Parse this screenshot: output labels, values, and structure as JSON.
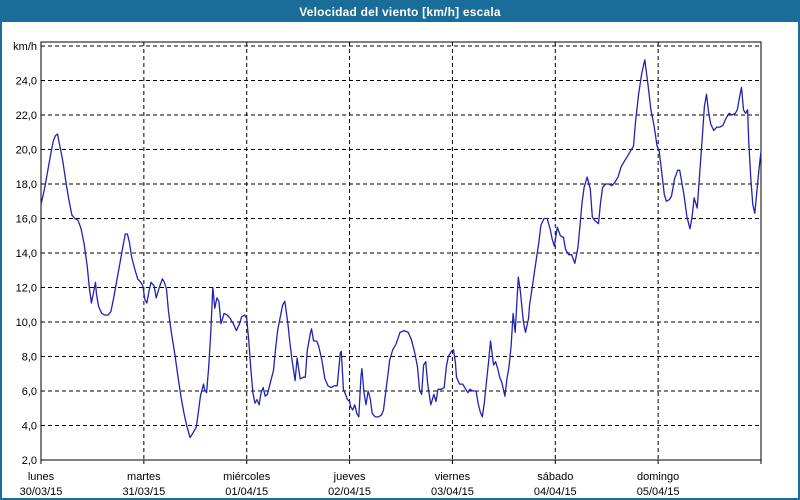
{
  "window": {
    "title": "Velocidad del viento [km/h] escala"
  },
  "colors": {
    "frame": "#1a6d99",
    "titlebar_bg": "#1a6d99",
    "titlebar_text": "#ffffff",
    "plot_bg": "#ffffff",
    "grid": "#000000",
    "axis_text": "#000000",
    "line": "#2222b2"
  },
  "chart_data": {
    "type": "line",
    "title": "Velocidad del viento [km/h] escala",
    "ylabel": "km/h",
    "ylim": [
      2,
      26
    ],
    "y_tick_step": 2,
    "y_tick_labels": [
      "2,0",
      "4,0",
      "6,0",
      "8,0",
      "10,0",
      "12,0",
      "14,0",
      "16,0",
      "18,0",
      "20,0",
      "22,0",
      "24,0"
    ],
    "y_top_label": "km/h",
    "grid": "dashed",
    "legend_position": "none",
    "x_axis_days": [
      {
        "name": "lunes",
        "date": "30/03/15"
      },
      {
        "name": "martes",
        "date": "31/03/15"
      },
      {
        "name": "miércoles",
        "date": "01/04/15"
      },
      {
        "name": "jueves",
        "date": "02/04/15"
      },
      {
        "name": "viernes",
        "date": "03/04/15"
      },
      {
        "name": "sábado",
        "date": "04/04/15"
      },
      {
        "name": "domingo",
        "date": "05/04/15"
      }
    ],
    "x_unit": "days_from_start",
    "x_range": [
      0,
      7
    ],
    "series": [
      {
        "name": "Velocidad del viento",
        "unit": "km/h",
        "color": "#2222b2",
        "points": [
          [
            0.0,
            16.8
          ],
          [
            0.04,
            17.9
          ],
          [
            0.09,
            19.6
          ],
          [
            0.12,
            20.5
          ],
          [
            0.14,
            20.8
          ],
          [
            0.16,
            20.9
          ],
          [
            0.18,
            20.3
          ],
          [
            0.21,
            19.4
          ],
          [
            0.24,
            18.2
          ],
          [
            0.27,
            17.1
          ],
          [
            0.3,
            16.2
          ],
          [
            0.33,
            16.0
          ],
          [
            0.36,
            15.9
          ],
          [
            0.39,
            15.4
          ],
          [
            0.42,
            14.5
          ],
          [
            0.45,
            13.2
          ],
          [
            0.47,
            12.0
          ],
          [
            0.49,
            11.1
          ],
          [
            0.51,
            11.7
          ],
          [
            0.53,
            12.3
          ],
          [
            0.54,
            11.6
          ],
          [
            0.56,
            10.9
          ],
          [
            0.59,
            10.5
          ],
          [
            0.62,
            10.4
          ],
          [
            0.65,
            10.4
          ],
          [
            0.68,
            10.6
          ],
          [
            0.71,
            11.5
          ],
          [
            0.74,
            12.5
          ],
          [
            0.77,
            13.5
          ],
          [
            0.8,
            14.5
          ],
          [
            0.82,
            15.1
          ],
          [
            0.84,
            15.1
          ],
          [
            0.86,
            14.6
          ],
          [
            0.88,
            13.8
          ],
          [
            0.91,
            13.1
          ],
          [
            0.94,
            12.5
          ],
          [
            0.97,
            12.3
          ],
          [
            0.99,
            12.1
          ],
          [
            1.01,
            11.3
          ],
          [
            1.03,
            11.1
          ],
          [
            1.05,
            11.8
          ],
          [
            1.07,
            12.3
          ],
          [
            1.1,
            12.1
          ],
          [
            1.12,
            11.4
          ],
          [
            1.15,
            12.0
          ],
          [
            1.18,
            12.5
          ],
          [
            1.2,
            12.3
          ],
          [
            1.22,
            11.9
          ],
          [
            1.24,
            10.6
          ],
          [
            1.27,
            9.3
          ],
          [
            1.3,
            8.2
          ],
          [
            1.33,
            6.9
          ],
          [
            1.36,
            5.7
          ],
          [
            1.39,
            4.7
          ],
          [
            1.42,
            3.9
          ],
          [
            1.45,
            3.3
          ],
          [
            1.48,
            3.6
          ],
          [
            1.51,
            3.9
          ],
          [
            1.53,
            4.8
          ],
          [
            1.55,
            5.7
          ],
          [
            1.58,
            6.4
          ],
          [
            1.59,
            6.1
          ],
          [
            1.61,
            5.9
          ],
          [
            1.63,
            7.4
          ],
          [
            1.65,
            9.3
          ],
          [
            1.67,
            12.0
          ],
          [
            1.69,
            10.8
          ],
          [
            1.71,
            11.4
          ],
          [
            1.73,
            11.2
          ],
          [
            1.75,
            9.9
          ],
          [
            1.78,
            10.5
          ],
          [
            1.81,
            10.4
          ],
          [
            1.84,
            10.2
          ],
          [
            1.87,
            9.9
          ],
          [
            1.9,
            9.5
          ],
          [
            1.93,
            9.9
          ],
          [
            1.95,
            10.3
          ],
          [
            1.98,
            10.4
          ],
          [
            2.0,
            10.2
          ],
          [
            2.02,
            8.9
          ],
          [
            2.04,
            7.3
          ],
          [
            2.06,
            5.9
          ],
          [
            2.08,
            5.3
          ],
          [
            2.1,
            5.5
          ],
          [
            2.12,
            5.2
          ],
          [
            2.14,
            5.9
          ],
          [
            2.16,
            6.2
          ],
          [
            2.18,
            5.7
          ],
          [
            2.2,
            5.8
          ],
          [
            2.23,
            6.5
          ],
          [
            2.26,
            7.2
          ],
          [
            2.28,
            8.4
          ],
          [
            2.3,
            9.5
          ],
          [
            2.32,
            10.1
          ],
          [
            2.35,
            11.0
          ],
          [
            2.37,
            11.2
          ],
          [
            2.4,
            9.9
          ],
          [
            2.42,
            8.8
          ],
          [
            2.44,
            7.8
          ],
          [
            2.47,
            6.6
          ],
          [
            2.49,
            7.9
          ],
          [
            2.52,
            6.7
          ],
          [
            2.55,
            6.8
          ],
          [
            2.57,
            6.8
          ],
          [
            2.59,
            8.4
          ],
          [
            2.62,
            9.4
          ],
          [
            2.63,
            9.6
          ],
          [
            2.65,
            8.9
          ],
          [
            2.68,
            8.9
          ],
          [
            2.7,
            8.6
          ],
          [
            2.73,
            7.8
          ],
          [
            2.76,
            6.7
          ],
          [
            2.79,
            6.3
          ],
          [
            2.82,
            6.2
          ],
          [
            2.85,
            6.3
          ],
          [
            2.88,
            6.3
          ],
          [
            2.91,
            8.2
          ],
          [
            2.92,
            8.3
          ],
          [
            2.94,
            6.1
          ],
          [
            2.96,
            5.8
          ],
          [
            2.98,
            5.5
          ],
          [
            3.0,
            5.4
          ],
          [
            3.01,
            5.1
          ],
          [
            3.03,
            4.9
          ],
          [
            3.05,
            5.2
          ],
          [
            3.07,
            4.7
          ],
          [
            3.09,
            4.5
          ],
          [
            3.11,
            6.8
          ],
          [
            3.12,
            7.3
          ],
          [
            3.14,
            5.9
          ],
          [
            3.16,
            5.2
          ],
          [
            3.18,
            6.0
          ],
          [
            3.2,
            5.6
          ],
          [
            3.22,
            4.7
          ],
          [
            3.25,
            4.5
          ],
          [
            3.28,
            4.5
          ],
          [
            3.31,
            4.6
          ],
          [
            3.33,
            4.9
          ],
          [
            3.35,
            5.9
          ],
          [
            3.37,
            6.8
          ],
          [
            3.39,
            7.8
          ],
          [
            3.42,
            8.4
          ],
          [
            3.45,
            8.7
          ],
          [
            3.49,
            9.4
          ],
          [
            3.53,
            9.5
          ],
          [
            3.57,
            9.4
          ],
          [
            3.6,
            9.0
          ],
          [
            3.63,
            8.3
          ],
          [
            3.66,
            7.4
          ],
          [
            3.68,
            6.1
          ],
          [
            3.7,
            5.8
          ],
          [
            3.72,
            7.5
          ],
          [
            3.74,
            7.7
          ],
          [
            3.76,
            6.4
          ],
          [
            3.79,
            5.2
          ],
          [
            3.82,
            5.8
          ],
          [
            3.84,
            5.4
          ],
          [
            3.86,
            6.1
          ],
          [
            3.89,
            6.1
          ],
          [
            3.92,
            6.2
          ],
          [
            3.94,
            7.4
          ],
          [
            3.96,
            8.0
          ],
          [
            3.99,
            8.3
          ],
          [
            4.01,
            8.4
          ],
          [
            4.03,
            7.6
          ],
          [
            4.04,
            6.8
          ],
          [
            4.07,
            6.4
          ],
          [
            4.1,
            6.4
          ],
          [
            4.13,
            6.1
          ],
          [
            4.15,
            5.9
          ],
          [
            4.17,
            6.1
          ],
          [
            4.2,
            6.0
          ],
          [
            4.23,
            6.0
          ],
          [
            4.25,
            5.3
          ],
          [
            4.27,
            4.8
          ],
          [
            4.29,
            4.5
          ],
          [
            4.31,
            5.3
          ],
          [
            4.33,
            6.5
          ],
          [
            4.35,
            7.6
          ],
          [
            4.37,
            8.9
          ],
          [
            4.39,
            8.0
          ],
          [
            4.4,
            7.5
          ],
          [
            4.42,
            7.7
          ],
          [
            4.44,
            7.3
          ],
          [
            4.46,
            6.8
          ],
          [
            4.48,
            6.5
          ],
          [
            4.51,
            5.7
          ],
          [
            4.53,
            6.7
          ],
          [
            4.55,
            7.4
          ],
          [
            4.57,
            8.6
          ],
          [
            4.59,
            10.5
          ],
          [
            4.61,
            9.4
          ],
          [
            4.64,
            12.6
          ],
          [
            4.66,
            11.8
          ],
          [
            4.69,
            10.0
          ],
          [
            4.71,
            9.4
          ],
          [
            4.74,
            10.2
          ],
          [
            4.75,
            11.0
          ],
          [
            4.78,
            12.2
          ],
          [
            4.81,
            13.4
          ],
          [
            4.84,
            14.6
          ],
          [
            4.86,
            15.6
          ],
          [
            4.89,
            16.0
          ],
          [
            4.92,
            16.0
          ],
          [
            4.95,
            15.4
          ],
          [
            4.97,
            14.8
          ],
          [
            4.99,
            14.4
          ],
          [
            5.02,
            15.5
          ],
          [
            5.05,
            15.0
          ],
          [
            5.08,
            14.9
          ],
          [
            5.1,
            14.2
          ],
          [
            5.13,
            13.9
          ],
          [
            5.16,
            13.9
          ],
          [
            5.19,
            13.4
          ],
          [
            5.22,
            14.3
          ],
          [
            5.24,
            15.6
          ],
          [
            5.26,
            16.9
          ],
          [
            5.28,
            17.8
          ],
          [
            5.31,
            18.4
          ],
          [
            5.34,
            17.7
          ],
          [
            5.36,
            16.1
          ],
          [
            5.38,
            15.9
          ],
          [
            5.4,
            15.8
          ],
          [
            5.42,
            15.7
          ],
          [
            5.44,
            16.9
          ],
          [
            5.46,
            17.8
          ],
          [
            5.49,
            18.0
          ],
          [
            5.52,
            18.0
          ],
          [
            5.55,
            17.9
          ],
          [
            5.58,
            18.1
          ],
          [
            5.61,
            18.4
          ],
          [
            5.64,
            19.0
          ],
          [
            5.67,
            19.3
          ],
          [
            5.7,
            19.6
          ],
          [
            5.73,
            19.9
          ],
          [
            5.76,
            20.2
          ],
          [
            5.78,
            21.6
          ],
          [
            5.81,
            23.2
          ],
          [
            5.84,
            24.4
          ],
          [
            5.87,
            25.2
          ],
          [
            5.9,
            23.8
          ],
          [
            5.93,
            22.3
          ],
          [
            5.96,
            21.4
          ],
          [
            5.99,
            20.2
          ],
          [
            6.01,
            19.9
          ],
          [
            6.04,
            18.4
          ],
          [
            6.06,
            17.4
          ],
          [
            6.08,
            17.0
          ],
          [
            6.11,
            17.1
          ],
          [
            6.13,
            17.3
          ],
          [
            6.16,
            18.3
          ],
          [
            6.19,
            18.8
          ],
          [
            6.21,
            18.8
          ],
          [
            6.23,
            18.1
          ],
          [
            6.25,
            17.4
          ],
          [
            6.28,
            16.1
          ],
          [
            6.31,
            15.4
          ],
          [
            6.33,
            16.1
          ],
          [
            6.35,
            17.2
          ],
          [
            6.38,
            16.6
          ],
          [
            6.41,
            19.1
          ],
          [
            6.43,
            20.8
          ],
          [
            6.45,
            22.5
          ],
          [
            6.47,
            23.2
          ],
          [
            6.49,
            22.2
          ],
          [
            6.51,
            21.5
          ],
          [
            6.54,
            21.1
          ],
          [
            6.57,
            21.3
          ],
          [
            6.6,
            21.3
          ],
          [
            6.63,
            21.4
          ],
          [
            6.66,
            21.8
          ],
          [
            6.69,
            22.1
          ],
          [
            6.72,
            22.0
          ],
          [
            6.75,
            22.1
          ],
          [
            6.77,
            22.3
          ],
          [
            6.79,
            23.0
          ],
          [
            6.81,
            23.6
          ],
          [
            6.83,
            22.3
          ],
          [
            6.85,
            22.1
          ],
          [
            6.87,
            22.3
          ],
          [
            6.88,
            20.5
          ],
          [
            6.9,
            18.4
          ],
          [
            6.92,
            16.8
          ],
          [
            6.94,
            16.3
          ],
          [
            6.96,
            17.6
          ],
          [
            6.98,
            18.8
          ],
          [
            7.0,
            19.9
          ]
        ]
      }
    ]
  }
}
